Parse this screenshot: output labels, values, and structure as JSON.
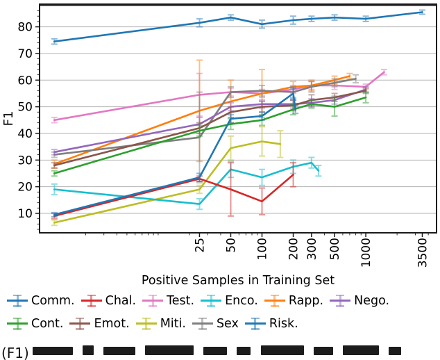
{
  "figure": {
    "ylabel": "F1",
    "xlabel": "Positive Samples in Training Set"
  },
  "caption": {
    "visible_text": "(F1)",
    "clipped": true
  },
  "chart_data": {
    "type": "line",
    "title": "",
    "xlabel": "Positive Samples in Training Set",
    "ylabel": "F1",
    "x_scale": "log",
    "x_ticks": [
      25,
      50,
      100,
      200,
      300,
      500,
      1000,
      3500
    ],
    "y_ticks": [
      10,
      20,
      30,
      40,
      50,
      60,
      70,
      80
    ],
    "x_range": [
      0.72,
      4800
    ],
    "y_range": [
      2.7,
      88.5
    ],
    "grid": "horizontal-major",
    "legend_position": "below",
    "error_bars": true,
    "series": [
      {
        "name": "Comm.",
        "color": "#1f77b4",
        "x": [
          1,
          25,
          50,
          100,
          200,
          210
        ],
        "y": [
          9.5,
          23.5,
          45.5,
          46.5,
          55,
          49
        ],
        "err": [
          0.8,
          1.5,
          1.5,
          1.5,
          2,
          1.5
        ]
      },
      {
        "name": "Chal.",
        "color": "#d62728",
        "x": [
          1,
          25,
          50,
          100,
          200
        ],
        "y": [
          9,
          23,
          19,
          14.5,
          24.5
        ],
        "err": [
          1,
          1,
          10,
          5,
          4.5
        ]
      },
      {
        "name": "Test.",
        "color": "#e377c2",
        "x": [
          1,
          25,
          50,
          100,
          200,
          300,
          500,
          1000,
          1500
        ],
        "y": [
          45,
          54.5,
          55.5,
          55,
          56.5,
          58,
          58,
          57.5,
          63
        ],
        "err": [
          1,
          8,
          1.5,
          1.5,
          1.5,
          1.5,
          1.5,
          1,
          1
        ]
      },
      {
        "name": "Enco.",
        "color": "#17becf",
        "x": [
          1,
          25,
          50,
          100,
          200,
          300,
          350
        ],
        "y": [
          19,
          13.5,
          26.5,
          23.5,
          27.5,
          29,
          26
        ],
        "err": [
          2,
          2,
          3,
          3,
          2.5,
          2,
          2
        ]
      },
      {
        "name": "Rapp.",
        "color": "#ff7f0e",
        "x": [
          1,
          25,
          50,
          100,
          200,
          300,
          500,
          700
        ],
        "y": [
          28.5,
          48.5,
          52,
          55,
          57.5,
          58,
          60,
          61.5
        ],
        "err": [
          1.5,
          19,
          8,
          9,
          2,
          2,
          1.5,
          1
        ]
      },
      {
        "name": "Nego.",
        "color": "#9467bd",
        "x": [
          1,
          25,
          50,
          100,
          200,
          300,
          500,
          1000
        ],
        "y": [
          33,
          43.5,
          50,
          51,
          51,
          51.5,
          52.5,
          56.5
        ],
        "err": [
          1,
          2.5,
          1.5,
          1.5,
          1.5,
          1.5,
          1.5,
          1
        ]
      },
      {
        "name": "Cont.",
        "color": "#2ca02c",
        "x": [
          1,
          25,
          50,
          100,
          200,
          300,
          500,
          1000
        ],
        "y": [
          25,
          41,
          43.5,
          45,
          49,
          51,
          50,
          53.5
        ],
        "err": [
          1,
          2,
          2,
          2,
          2,
          1.5,
          3.5,
          2
        ]
      },
      {
        "name": "Emot.",
        "color": "#8c564b",
        "x": [
          1,
          25,
          50,
          100,
          200,
          300,
          500,
          1000
        ],
        "y": [
          28,
          42,
          48,
          50,
          50.5,
          52.5,
          53.5,
          56
        ],
        "err": [
          1,
          2,
          2,
          2,
          2,
          2,
          1.5,
          1
        ]
      },
      {
        "name": "Miti.",
        "color": "#bcbd22",
        "x": [
          1,
          25,
          50,
          100,
          150
        ],
        "y": [
          6.5,
          19,
          34.5,
          37,
          36
        ],
        "err": [
          1,
          1.5,
          4.5,
          5.5,
          5
        ]
      },
      {
        "name": "Sex",
        "color": "#7f7f7f",
        "x": [
          1,
          25,
          50,
          100,
          200,
          300,
          500,
          800
        ],
        "y": [
          32,
          38.5,
          55.5,
          56,
          55.5,
          57.5,
          59,
          60.5
        ],
        "err": [
          1,
          17,
          2,
          2,
          2,
          2,
          1.5,
          1.5
        ]
      },
      {
        "name": "Risk.",
        "color": "#1f77b4",
        "x": [
          1,
          25,
          50,
          100,
          200,
          300,
          500,
          1000,
          3500
        ],
        "y": [
          74.5,
          81.5,
          83.5,
          81,
          82.5,
          83,
          83.5,
          83,
          85.5
        ],
        "err": [
          1,
          1.5,
          1,
          1.5,
          1.5,
          1,
          1,
          1,
          0.8
        ]
      }
    ]
  },
  "legend": {
    "rows": [
      [
        {
          "label": "Comm.",
          "color": "#1f77b4"
        },
        {
          "label": "Chal.",
          "color": "#d62728"
        },
        {
          "label": "Test.",
          "color": "#e377c2"
        },
        {
          "label": "Enco.",
          "color": "#17becf"
        },
        {
          "label": "Rapp.",
          "color": "#ff7f0e"
        },
        {
          "label": "Nego.",
          "color": "#9467bd"
        }
      ],
      [
        {
          "label": "Cont.",
          "color": "#2ca02c"
        },
        {
          "label": "Emot.",
          "color": "#8c564b"
        },
        {
          "label": "Miti.",
          "color": "#bcbd22"
        },
        {
          "label": "Sex",
          "color": "#7f7f7f"
        },
        {
          "label": "Risk.",
          "color": "#1f77b4"
        }
      ]
    ]
  }
}
